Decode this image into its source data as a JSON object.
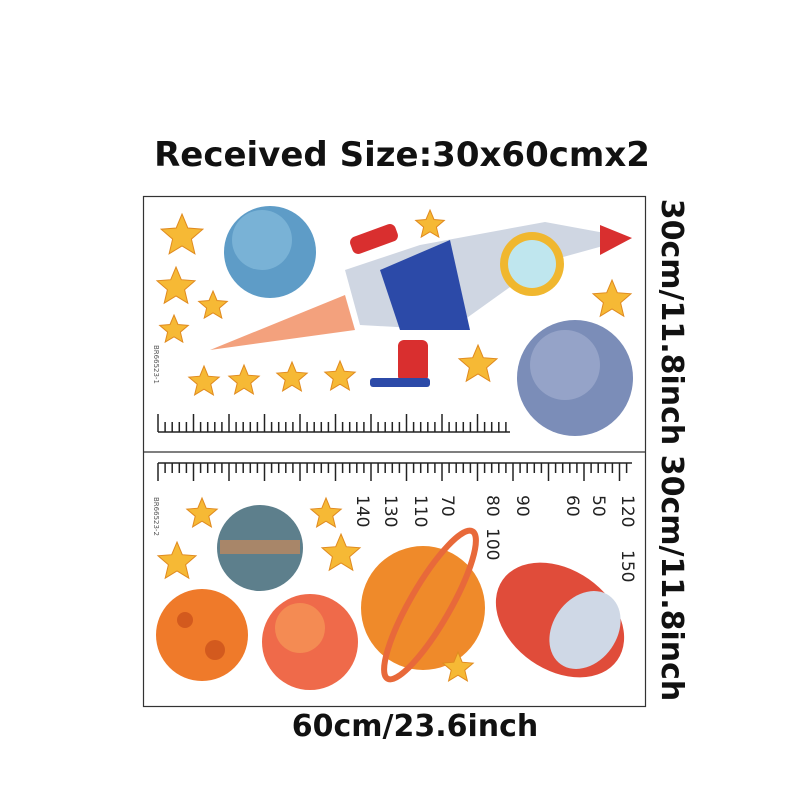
{
  "header": {
    "title": "Received Size:30x60cmx2"
  },
  "panels": [
    {
      "code": "BR66523-1",
      "height_label": "30cm/11.8inch"
    },
    {
      "code": "BR66523-2",
      "height_label": "30cm/11.8inch"
    }
  ],
  "width_label": "60cm/23.6inch",
  "ruler_labels": [
    140,
    130,
    110,
    70,
    80,
    100,
    90,
    60,
    50,
    120,
    150
  ]
}
